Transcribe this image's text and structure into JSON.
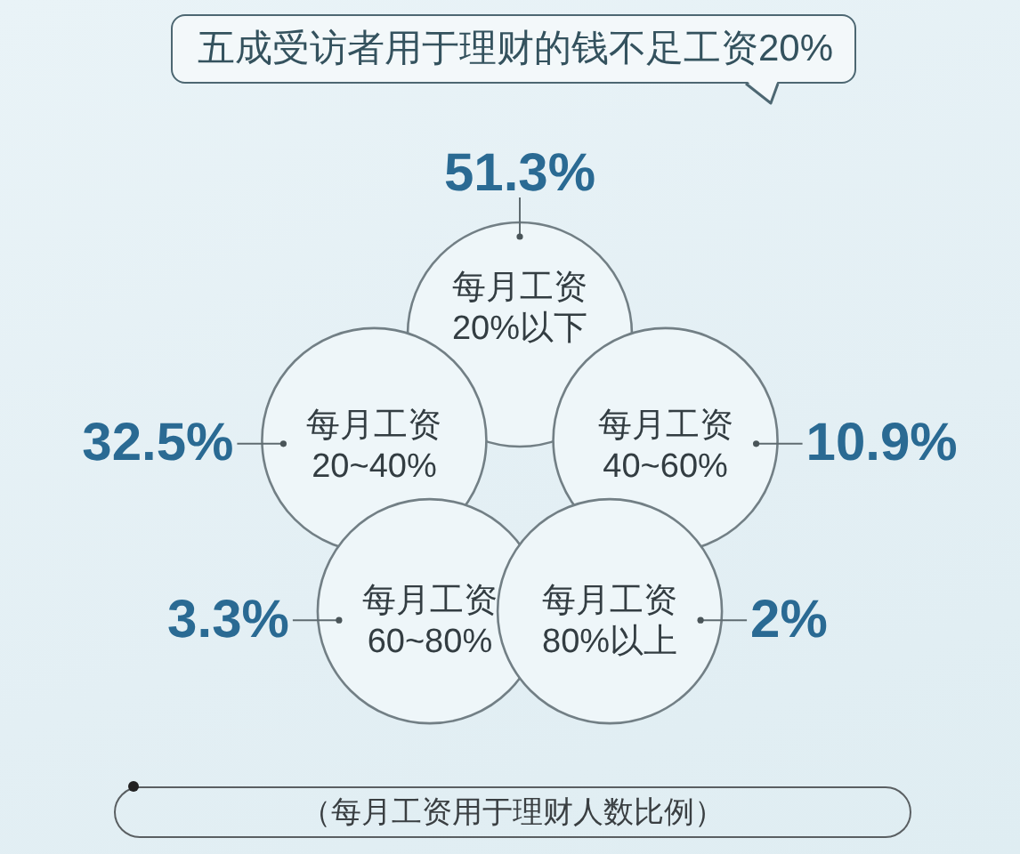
{
  "chart_data": {
    "type": "other",
    "title": "五成受访者用于理财的钱不足工资20%",
    "categories": [
      "每月工资 20%以下",
      "每月工资 20~40%",
      "每月工资 40~60%",
      "每月工资 60~80%",
      "每月工资 80%以上"
    ],
    "values": [
      51.3,
      32.5,
      10.9,
      3.3,
      2
    ],
    "value_labels": [
      "51.3%",
      "32.5%",
      "10.9%",
      "3.3%",
      "2%"
    ],
    "color": "#eef6f9",
    "annotations": [
      "（每月工资用于理财人数比例）"
    ]
  }
}
